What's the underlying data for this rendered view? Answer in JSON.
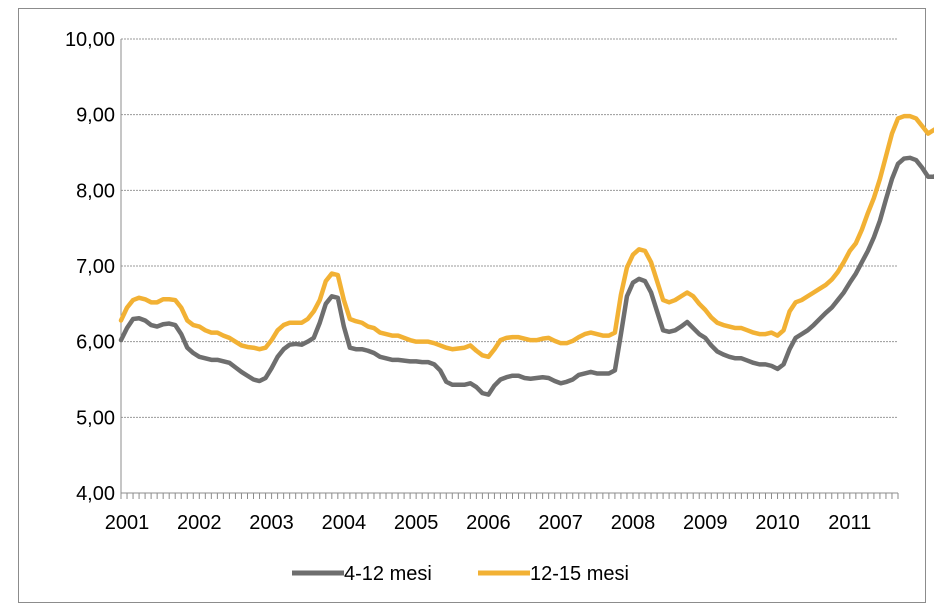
{
  "chart_data": {
    "type": "line",
    "title": "",
    "xlabel": "",
    "ylabel": "",
    "ylim": [
      4,
      10
    ],
    "y_ticks": [
      "4,00",
      "5,00",
      "6,00",
      "7,00",
      "8,00",
      "9,00",
      "10,00"
    ],
    "x_tick_labels": [
      "2001",
      "2002",
      "2003",
      "2004",
      "2005",
      "2006",
      "2007",
      "2008",
      "2009",
      "2010",
      "2011"
    ],
    "x_start": 2001.0,
    "x_step_months": 1,
    "grid": "horizontal",
    "legend_position": "bottom",
    "series": [
      {
        "name": "4-12 mesi",
        "color": "#6e6e6e",
        "values": [
          6.02,
          6.18,
          6.3,
          6.31,
          6.28,
          6.22,
          6.2,
          6.23,
          6.24,
          6.22,
          6.1,
          5.92,
          5.85,
          5.8,
          5.78,
          5.76,
          5.76,
          5.74,
          5.72,
          5.66,
          5.6,
          5.55,
          5.5,
          5.48,
          5.52,
          5.65,
          5.8,
          5.9,
          5.96,
          5.97,
          5.96,
          6.0,
          6.05,
          6.25,
          6.5,
          6.6,
          6.58,
          6.2,
          5.92,
          5.9,
          5.9,
          5.88,
          5.85,
          5.8,
          5.78,
          5.76,
          5.76,
          5.75,
          5.74,
          5.74,
          5.73,
          5.73,
          5.7,
          5.62,
          5.47,
          5.43,
          5.43,
          5.43,
          5.45,
          5.4,
          5.32,
          5.3,
          5.42,
          5.5,
          5.53,
          5.55,
          5.55,
          5.52,
          5.51,
          5.52,
          5.53,
          5.52,
          5.48,
          5.45,
          5.47,
          5.5,
          5.56,
          5.58,
          5.6,
          5.58,
          5.58,
          5.58,
          5.62,
          6.1,
          6.6,
          6.78,
          6.83,
          6.8,
          6.65,
          6.4,
          6.15,
          6.13,
          6.15,
          6.2,
          6.26,
          6.18,
          6.1,
          6.05,
          5.95,
          5.87,
          5.83,
          5.8,
          5.78,
          5.78,
          5.75,
          5.72,
          5.7,
          5.7,
          5.68,
          5.64,
          5.7,
          5.9,
          6.05,
          6.1,
          6.15,
          6.22,
          6.3,
          6.38,
          6.45,
          6.55,
          6.65,
          6.78,
          6.9,
          7.05,
          7.2,
          7.38,
          7.6,
          7.88,
          8.15,
          8.35,
          8.42,
          8.43,
          8.4,
          8.3,
          8.18,
          8.18,
          8.25
        ]
      },
      {
        "name": "12-15 mesi",
        "color": "#f2b134",
        "values": [
          6.28,
          6.45,
          6.55,
          6.58,
          6.56,
          6.52,
          6.52,
          6.56,
          6.56,
          6.55,
          6.45,
          6.28,
          6.22,
          6.2,
          6.15,
          6.12,
          6.12,
          6.08,
          6.05,
          6.0,
          5.95,
          5.93,
          5.92,
          5.9,
          5.92,
          6.02,
          6.15,
          6.22,
          6.25,
          6.25,
          6.25,
          6.3,
          6.4,
          6.55,
          6.8,
          6.9,
          6.88,
          6.55,
          6.3,
          6.27,
          6.25,
          6.2,
          6.18,
          6.12,
          6.1,
          6.08,
          6.08,
          6.05,
          6.02,
          6.0,
          6.0,
          6.0,
          5.98,
          5.95,
          5.92,
          5.9,
          5.91,
          5.92,
          5.95,
          5.88,
          5.82,
          5.8,
          5.9,
          6.02,
          6.05,
          6.06,
          6.06,
          6.04,
          6.02,
          6.02,
          6.04,
          6.05,
          6.01,
          5.98,
          5.98,
          6.01,
          6.06,
          6.1,
          6.12,
          6.1,
          6.08,
          6.08,
          6.12,
          6.62,
          6.98,
          7.15,
          7.22,
          7.2,
          7.05,
          6.8,
          6.55,
          6.52,
          6.55,
          6.6,
          6.65,
          6.6,
          6.5,
          6.42,
          6.32,
          6.25,
          6.22,
          6.2,
          6.18,
          6.18,
          6.15,
          6.12,
          6.1,
          6.1,
          6.12,
          6.08,
          6.15,
          6.4,
          6.52,
          6.55,
          6.6,
          6.65,
          6.7,
          6.75,
          6.82,
          6.92,
          7.05,
          7.2,
          7.3,
          7.48,
          7.7,
          7.9,
          8.15,
          8.45,
          8.75,
          8.95,
          8.98,
          8.98,
          8.95,
          8.85,
          8.75,
          8.8,
          8.85
        ]
      }
    ]
  }
}
